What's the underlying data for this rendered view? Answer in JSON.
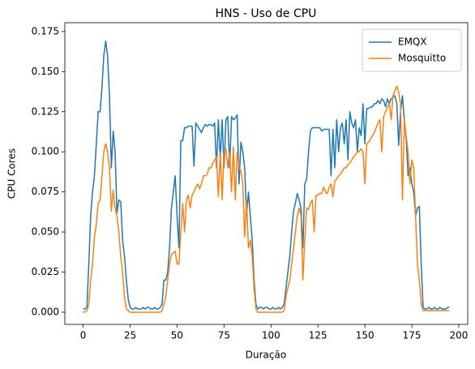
{
  "chart_data": {
    "type": "line",
    "title": "HNS - Uso de CPU",
    "x_label": "Duração",
    "y_label": "CPU Cores",
    "xlim": [
      -9.75,
      204.75
    ],
    "xticks": [
      0,
      25,
      50,
      75,
      100,
      125,
      150,
      175,
      200
    ],
    "ylim": [
      -0.0076,
      0.1805
    ],
    "yticks": [
      {
        "value": 0,
        "label": "0.000"
      },
      {
        "value": 0.025,
        "label": "0.025"
      },
      {
        "value": 0.05,
        "label": "0.050"
      },
      {
        "value": 0.075,
        "label": "0.075"
      },
      {
        "value": 0.1,
        "label": "0.100"
      },
      {
        "value": 0.125,
        "label": "0.125"
      },
      {
        "value": 0.15,
        "label": "0.150"
      },
      {
        "value": 0.175,
        "label": "0.175"
      }
    ],
    "grid": false,
    "legend": "upper right",
    "series": [
      {
        "name": "EMQX",
        "color": "#1f77b4",
        "values": [
          0.002,
          0.002,
          0.003,
          0.03,
          0.06,
          0.075,
          0.085,
          0.105,
          0.125,
          0.125,
          0.14,
          0.16,
          0.169,
          0.16,
          0.135,
          0.09,
          0.113,
          0.1,
          0.062,
          0.07,
          0.069,
          0.045,
          0.035,
          0.02,
          0.008,
          0.003,
          0.002,
          0.002,
          0.003,
          0.002,
          0.002,
          0.002,
          0.003,
          0.002,
          0.003,
          0.003,
          0.002,
          0.002,
          0.003,
          0.002,
          0.002,
          0.003,
          0.005,
          0.02,
          0.02,
          0.025,
          0.04,
          0.065,
          0.075,
          0.085,
          0.06,
          0.04,
          0.107,
          0.107,
          0.115,
          0.115,
          0.116,
          0.116,
          0.116,
          0.091,
          0.118,
          0.116,
          0.114,
          0.112,
          0.115,
          0.117,
          0.116,
          0.117,
          0.117,
          0.116,
          0.118,
          0.09,
          0.12,
          0.095,
          0.12,
          0.09,
          0.12,
          0.122,
          0.09,
          0.122,
          0.12,
          0.121,
          0.123,
          0.08,
          0.106,
          0.1,
          0.09,
          0.06,
          0.075,
          0.06,
          0.045,
          0.02,
          0.005,
          0.002,
          0.003,
          0.003,
          0.002,
          0.003,
          0.003,
          0.002,
          0.002,
          0.003,
          0.002,
          0.002,
          0.003,
          0.002,
          0.003,
          0.005,
          0.015,
          0.025,
          0.035,
          0.05,
          0.063,
          0.068,
          0.074,
          0.07,
          0.065,
          0.04,
          0.08,
          0.083,
          0.1,
          0.113,
          0.115,
          0.115,
          0.115,
          0.115,
          0.115,
          0.113,
          0.114,
          0.114,
          0.114,
          0.114,
          0.085,
          0.114,
          0.09,
          0.12,
          0.1,
          0.115,
          0.118,
          0.105,
          0.12,
          0.095,
          0.125,
          0.118,
          0.115,
          0.12,
          0.1,
          0.115,
          0.11,
          0.13,
          0.105,
          0.127,
          0.127,
          0.128,
          0.128,
          0.13,
          0.13,
          0.132,
          0.13,
          0.133,
          0.132,
          0.128,
          0.133,
          0.13,
          0.133,
          0.134,
          0.135,
          0.13,
          0.104,
          0.125,
          0.135,
          0.12,
          0.108,
          0.085,
          0.09,
          0.08,
          0.075,
          0.06,
          0.065,
          0.066,
          0.03,
          0.003,
          0.002,
          0.002,
          0.003,
          0.002,
          0.002,
          0.003,
          0.002,
          0.002,
          0.003,
          0.002,
          0.002,
          0.002,
          0.003,
          0.003
        ]
      },
      {
        "name": "Mosquitto",
        "color": "#ff7f0e",
        "values": [
          0,
          0,
          0.001,
          0.005,
          0.02,
          0.03,
          0.047,
          0.055,
          0.068,
          0.07,
          0.085,
          0.1,
          0.105,
          0.1,
          0.09,
          0.063,
          0.076,
          0.065,
          0.06,
          0.05,
          0.035,
          0.025,
          0.01,
          0.002,
          0.001,
          0,
          0,
          0,
          0,
          0,
          0,
          0,
          0,
          0,
          0,
          0,
          0,
          0,
          0,
          0,
          0,
          0,
          0.001,
          0.005,
          0.01,
          0.02,
          0.03,
          0.036,
          0.037,
          0.038,
          0.03,
          0.03,
          0.05,
          0.068,
          0.05,
          0.07,
          0.073,
          0.065,
          0.073,
          0.075,
          0.078,
          0.08,
          0.077,
          0.08,
          0.085,
          0.085,
          0.086,
          0.09,
          0.09,
          0.093,
          0.095,
          0.097,
          0.072,
          0.1,
          0.07,
          0.1,
          0.102,
          0.09,
          0.1,
          0.075,
          0.103,
          0.07,
          0.1,
          0.09,
          0.088,
          0.08,
          0.047,
          0.07,
          0.04,
          0.045,
          0.035,
          0.015,
          0.002,
          0,
          0,
          0,
          0,
          0,
          0,
          0,
          0,
          0,
          0,
          0,
          0,
          0,
          0,
          0.001,
          0.01,
          0.015,
          0.02,
          0.03,
          0.04,
          0.05,
          0.06,
          0.065,
          0.06,
          0.02,
          0.045,
          0.065,
          0.064,
          0.068,
          0.07,
          0.05,
          0.073,
          0.073,
          0.074,
          0.074,
          0.078,
          0.075,
          0.074,
          0.078,
          0.08,
          0.072,
          0.082,
          0.083,
          0.085,
          0.086,
          0.088,
          0.09,
          0.09,
          0.092,
          0.093,
          0.095,
          0.097,
          0.098,
          0.1,
          0.1,
          0.102,
          0.1,
          0.08,
          0.105,
          0.106,
          0.108,
          0.11,
          0.112,
          0.115,
          0.118,
          0.12,
          0.1,
          0.122,
          0.125,
          0.128,
          0.13,
          0.12,
          0.135,
          0.138,
          0.141,
          0.137,
          0.13,
          0.07,
          0.12,
          0.11,
          0.1,
          0.08,
          0.095,
          0.09,
          0.06,
          0.03,
          0.02,
          0.005,
          0.001,
          0.001,
          0.001,
          0.001,
          0.001,
          0.001,
          0.001,
          0.001,
          0.001,
          0.001,
          0.001,
          0.001,
          0.001,
          0.001,
          0.001
        ]
      }
    ]
  }
}
